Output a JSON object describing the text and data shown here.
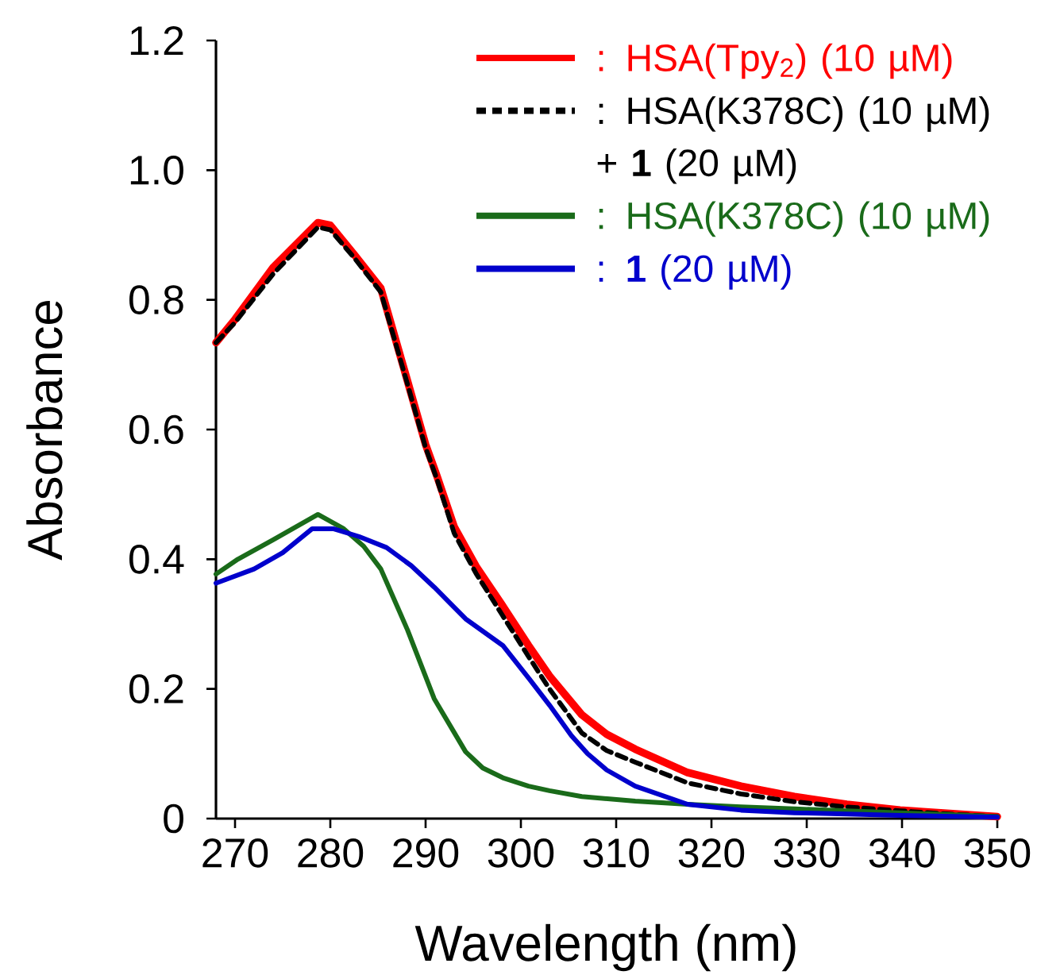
{
  "chart_data": {
    "type": "line",
    "xlabel": "Wavelength (nm)",
    "ylabel": "Absorbance",
    "xlim": [
      268,
      350
    ],
    "ylim": [
      0,
      1.2
    ],
    "xticks": [
      270,
      280,
      290,
      300,
      310,
      320,
      330,
      340,
      350
    ],
    "yticks": [
      0,
      0.2,
      0.4,
      0.6,
      0.8,
      {
        "value": 1.0,
        "label": "1.0"
      },
      1.2
    ],
    "grid": false,
    "legend": "top right",
    "marker": "none",
    "series": [
      {
        "name": ": HSA(Tpy$_{2}$) (10 µM)",
        "color": "#ff0000",
        "line_style": "solid",
        "x": [
          268,
          270,
          274,
          278.7,
          280,
          282.5,
          285.3,
          288,
          290,
          291.2,
          293,
          295.3,
          298,
          300.8,
          303,
          306.4,
          309,
          312,
          317.5,
          323.1,
          328.7,
          334.2,
          339.8,
          345,
          350
        ],
        "values": [
          0.734,
          0.77,
          0.85,
          0.919,
          0.915,
          0.87,
          0.818,
          0.68,
          0.577,
          0.528,
          0.45,
          0.389,
          0.33,
          0.267,
          0.22,
          0.16,
          0.13,
          0.107,
          0.071,
          0.05,
          0.034,
          0.022,
          0.013,
          0.008,
          0.003
        ]
      },
      {
        "name": ": HSA(K378C) (10 µM) + **1** (20 µM)",
        "color": "#000000",
        "line_style": "dashed",
        "x": [
          268,
          270,
          274,
          278.7,
          280,
          282.5,
          285.3,
          288,
          290,
          291.2,
          293,
          295.3,
          298,
          300.8,
          303,
          306.4,
          309,
          312,
          317.5,
          323.1,
          328.7,
          334.2,
          339.8,
          345,
          350
        ],
        "values": [
          0.734,
          0.765,
          0.84,
          0.912,
          0.908,
          0.865,
          0.812,
          0.675,
          0.572,
          0.523,
          0.44,
          0.378,
          0.315,
          0.25,
          0.2,
          0.132,
          0.105,
          0.087,
          0.055,
          0.038,
          0.026,
          0.018,
          0.012,
          0.007,
          0.003
        ]
      },
      {
        "name": ": HSA(K378C) (10 µM)",
        "color": "#1a6b1a",
        "line_style": "solid",
        "x": [
          268,
          270.3,
          274,
          278.7,
          281.4,
          283.5,
          285.3,
          288.1,
          290.9,
          294.2,
          296,
          298.1,
          300.8,
          303,
          306.4,
          312,
          317.5,
          323.1,
          328.7,
          334.2,
          339.8,
          345,
          350
        ],
        "values": [
          0.377,
          0.4,
          0.43,
          0.469,
          0.447,
          0.42,
          0.385,
          0.291,
          0.185,
          0.103,
          0.078,
          0.063,
          0.05,
          0.043,
          0.034,
          0.027,
          0.022,
          0.018,
          0.015,
          0.012,
          0.009,
          0.006,
          0.003
        ]
      },
      {
        "name": ": **1** (20 µM)",
        "color": "#0000cc",
        "line_style": "solid",
        "x": [
          268,
          272,
          275,
          278.1,
          280.3,
          283,
          285.9,
          288.5,
          290.9,
          294.2,
          298.1,
          300.9,
          303,
          305.3,
          307,
          309,
          312,
          317.5,
          323.1,
          328.7,
          334.2,
          339.8,
          350
        ],
        "values": [
          0.363,
          0.385,
          0.41,
          0.447,
          0.447,
          0.435,
          0.418,
          0.39,
          0.357,
          0.308,
          0.267,
          0.215,
          0.175,
          0.128,
          0.1,
          0.075,
          0.05,
          0.022,
          0.013,
          0.009,
          0.007,
          0.005,
          0.002
        ]
      }
    ]
  }
}
